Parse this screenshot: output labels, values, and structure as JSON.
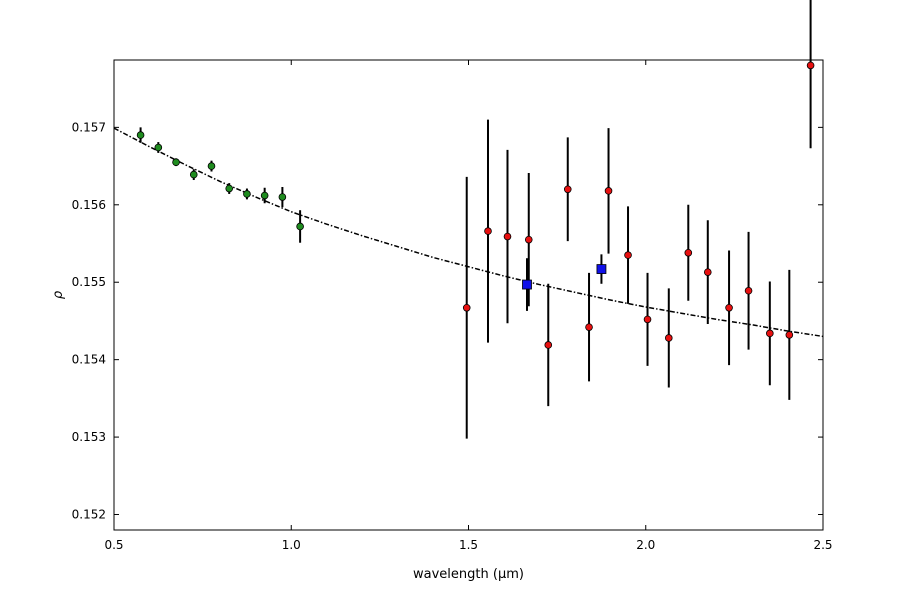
{
  "chart_data": {
    "type": "scatter",
    "title": "",
    "xlabel": "wavelength (μm)",
    "ylabel": "ρ",
    "xlim": [
      0.5,
      2.5
    ],
    "ylim": [
      0.1518,
      0.15787
    ],
    "x_ticks": [
      0.5,
      1.0,
      1.5,
      2.0,
      2.5
    ],
    "x_tick_labels": [
      "0.5",
      "1.0",
      "1.5",
      "2.0",
      "2.5"
    ],
    "y_ticks": [
      0.152,
      0.153,
      0.154,
      0.155,
      0.156,
      0.157
    ],
    "y_tick_labels": [
      "0.152",
      "0.153",
      "0.154",
      "0.155",
      "0.156",
      "0.157"
    ],
    "grid": false,
    "legend": "none",
    "fit_curve": {
      "style": "dash-dot",
      "color": "#000000",
      "x": [
        0.5,
        0.6,
        0.7,
        0.8,
        0.9,
        1.0,
        1.1,
        1.2,
        1.3,
        1.4,
        1.5,
        1.6,
        1.7,
        1.8,
        1.9,
        2.0,
        2.1,
        2.2,
        2.3,
        2.4,
        2.5
      ],
      "y": [
        0.15699,
        0.15675,
        0.15652,
        0.1563,
        0.1561,
        0.15591,
        0.15575,
        0.1556,
        0.15546,
        0.15532,
        0.1552,
        0.15508,
        0.15497,
        0.15487,
        0.15477,
        0.15468,
        0.1546,
        0.15452,
        0.15445,
        0.15437,
        0.1543
      ]
    },
    "series": [
      {
        "marker": "circle",
        "color": "#1f8c1f",
        "points": [
          {
            "x": 0.575,
            "y": 0.1569,
            "err": 0.0001
          },
          {
            "x": 0.625,
            "y": 0.15674,
            "err": 7e-05
          },
          {
            "x": 0.675,
            "y": 0.15655,
            "err": 5e-05
          },
          {
            "x": 0.725,
            "y": 0.15639,
            "err": 7e-05
          },
          {
            "x": 0.775,
            "y": 0.1565,
            "err": 7e-05
          },
          {
            "x": 0.825,
            "y": 0.15621,
            "err": 7e-05
          },
          {
            "x": 0.875,
            "y": 0.15614,
            "err": 7e-05
          },
          {
            "x": 0.925,
            "y": 0.15612,
            "err": 0.0001
          },
          {
            "x": 0.975,
            "y": 0.1561,
            "err": 0.00013
          },
          {
            "x": 1.025,
            "y": 0.15572,
            "err": 0.00021
          }
        ]
      },
      {
        "marker": "circle",
        "color": "#e81010",
        "points": [
          {
            "x": 1.495,
            "y": 0.15467,
            "err": 0.00169
          },
          {
            "x": 1.555,
            "y": 0.15566,
            "err": 0.00144
          },
          {
            "x": 1.61,
            "y": 0.15559,
            "err": 0.00112
          },
          {
            "x": 1.67,
            "y": 0.15555,
            "err": 0.00086
          },
          {
            "x": 1.725,
            "y": 0.15419,
            "err": 0.00079
          },
          {
            "x": 1.78,
            "y": 0.1562,
            "err": 0.00067
          },
          {
            "x": 1.84,
            "y": 0.15442,
            "err": 0.0007
          },
          {
            "x": 1.895,
            "y": 0.15618,
            "err": 0.00081
          },
          {
            "x": 1.95,
            "y": 0.15535,
            "err": 0.00063
          },
          {
            "x": 2.005,
            "y": 0.15452,
            "err": 0.0006
          },
          {
            "x": 2.065,
            "y": 0.15428,
            "err": 0.00064
          },
          {
            "x": 2.12,
            "y": 0.15538,
            "err": 0.00062
          },
          {
            "x": 2.175,
            "y": 0.15513,
            "err": 0.00067
          },
          {
            "x": 2.235,
            "y": 0.15467,
            "err": 0.00074
          },
          {
            "x": 2.29,
            "y": 0.15489,
            "err": 0.00076
          },
          {
            "x": 2.35,
            "y": 0.15434,
            "err": 0.00067
          },
          {
            "x": 2.405,
            "y": 0.15432,
            "err": 0.00084
          },
          {
            "x": 2.465,
            "y": 0.1578,
            "err": 0.00107
          }
        ]
      },
      {
        "marker": "square",
        "color": "#1010e8",
        "points": [
          {
            "x": 1.665,
            "y": 0.15497,
            "err": 0.00034
          },
          {
            "x": 1.875,
            "y": 0.15517,
            "err": 0.00019
          }
        ]
      }
    ]
  }
}
